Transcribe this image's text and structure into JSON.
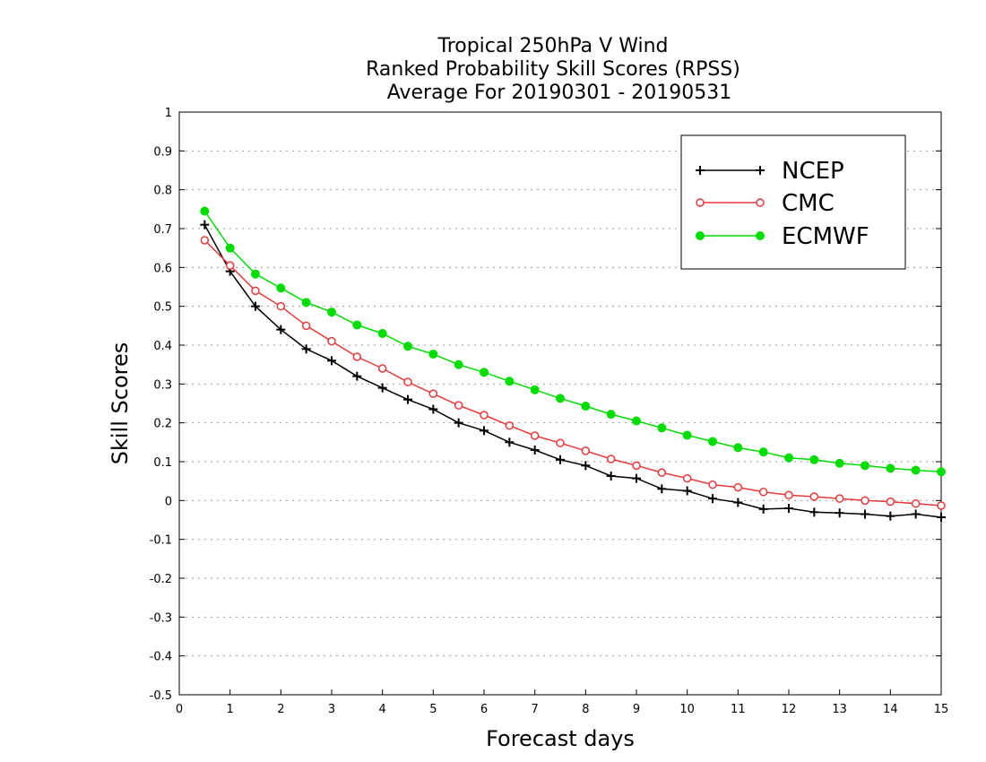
{
  "chart_data": {
    "type": "line",
    "title_lines": [
      "Tropical 250hPa V Wind",
      "Ranked Probability Skill Scores (RPSS)",
      "Average For 20190301 - 20190531"
    ],
    "xlabel": "Forecast days",
    "ylabel": "Skill Scores",
    "xlim": [
      0,
      15
    ],
    "ylim": [
      -0.5,
      1
    ],
    "xticks": [
      0,
      1,
      2,
      3,
      4,
      5,
      6,
      7,
      8,
      9,
      10,
      11,
      12,
      13,
      14,
      15
    ],
    "yticks": [
      -0.5,
      -0.4,
      -0.3,
      -0.2,
      -0.1,
      0,
      0.1,
      0.2,
      0.3,
      0.4,
      0.5,
      0.6,
      0.7,
      0.8,
      0.9,
      1
    ],
    "ytick_labels": [
      "-0.5",
      "-0.4",
      "-0.3",
      "-0.2",
      "-0.1",
      "0",
      "0.1",
      "0.2",
      "0.3",
      "0.4",
      "0.5",
      "0.6",
      "0.7",
      "0.8",
      "0.9",
      "1"
    ],
    "grid": "horizontal dotted",
    "legend_position": "top-right",
    "x": [
      0.5,
      1,
      1.5,
      2,
      2.5,
      3,
      3.5,
      4,
      4.5,
      5,
      5.5,
      6,
      6.5,
      7,
      7.5,
      8,
      8.5,
      9,
      9.5,
      10,
      10.5,
      11,
      11.5,
      12,
      12.5,
      13,
      13.5,
      14,
      14.5,
      15
    ],
    "series": [
      {
        "name": "NCEP",
        "color": "#000000",
        "marker": "plus",
        "values": [
          0.71,
          0.59,
          0.5,
          0.44,
          0.39,
          0.36,
          0.32,
          0.29,
          0.26,
          0.235,
          0.2,
          0.18,
          0.15,
          0.13,
          0.105,
          0.09,
          0.063,
          0.057,
          0.03,
          0.025,
          0.005,
          -0.005,
          -0.022,
          -0.02,
          -0.03,
          -0.032,
          -0.035,
          -0.04,
          -0.035,
          -0.043
        ]
      },
      {
        "name": "CMC",
        "color": "#e8383a",
        "marker": "open-circle",
        "values": [
          0.67,
          0.605,
          0.54,
          0.5,
          0.45,
          0.41,
          0.37,
          0.34,
          0.305,
          0.275,
          0.245,
          0.22,
          0.193,
          0.167,
          0.148,
          0.128,
          0.107,
          0.09,
          0.072,
          0.057,
          0.041,
          0.034,
          0.022,
          0.014,
          0.01,
          0.005,
          0.0,
          -0.003,
          -0.008,
          -0.013
        ]
      },
      {
        "name": "ECMWF",
        "color": "#00dd00",
        "marker": "filled-circle",
        "values": [
          0.745,
          0.65,
          0.583,
          0.547,
          0.51,
          0.485,
          0.452,
          0.43,
          0.397,
          0.377,
          0.35,
          0.33,
          0.307,
          0.285,
          0.263,
          0.243,
          0.222,
          0.205,
          0.187,
          0.168,
          0.152,
          0.136,
          0.125,
          0.11,
          0.105,
          0.096,
          0.09,
          0.083,
          0.078,
          0.074
        ]
      }
    ]
  }
}
